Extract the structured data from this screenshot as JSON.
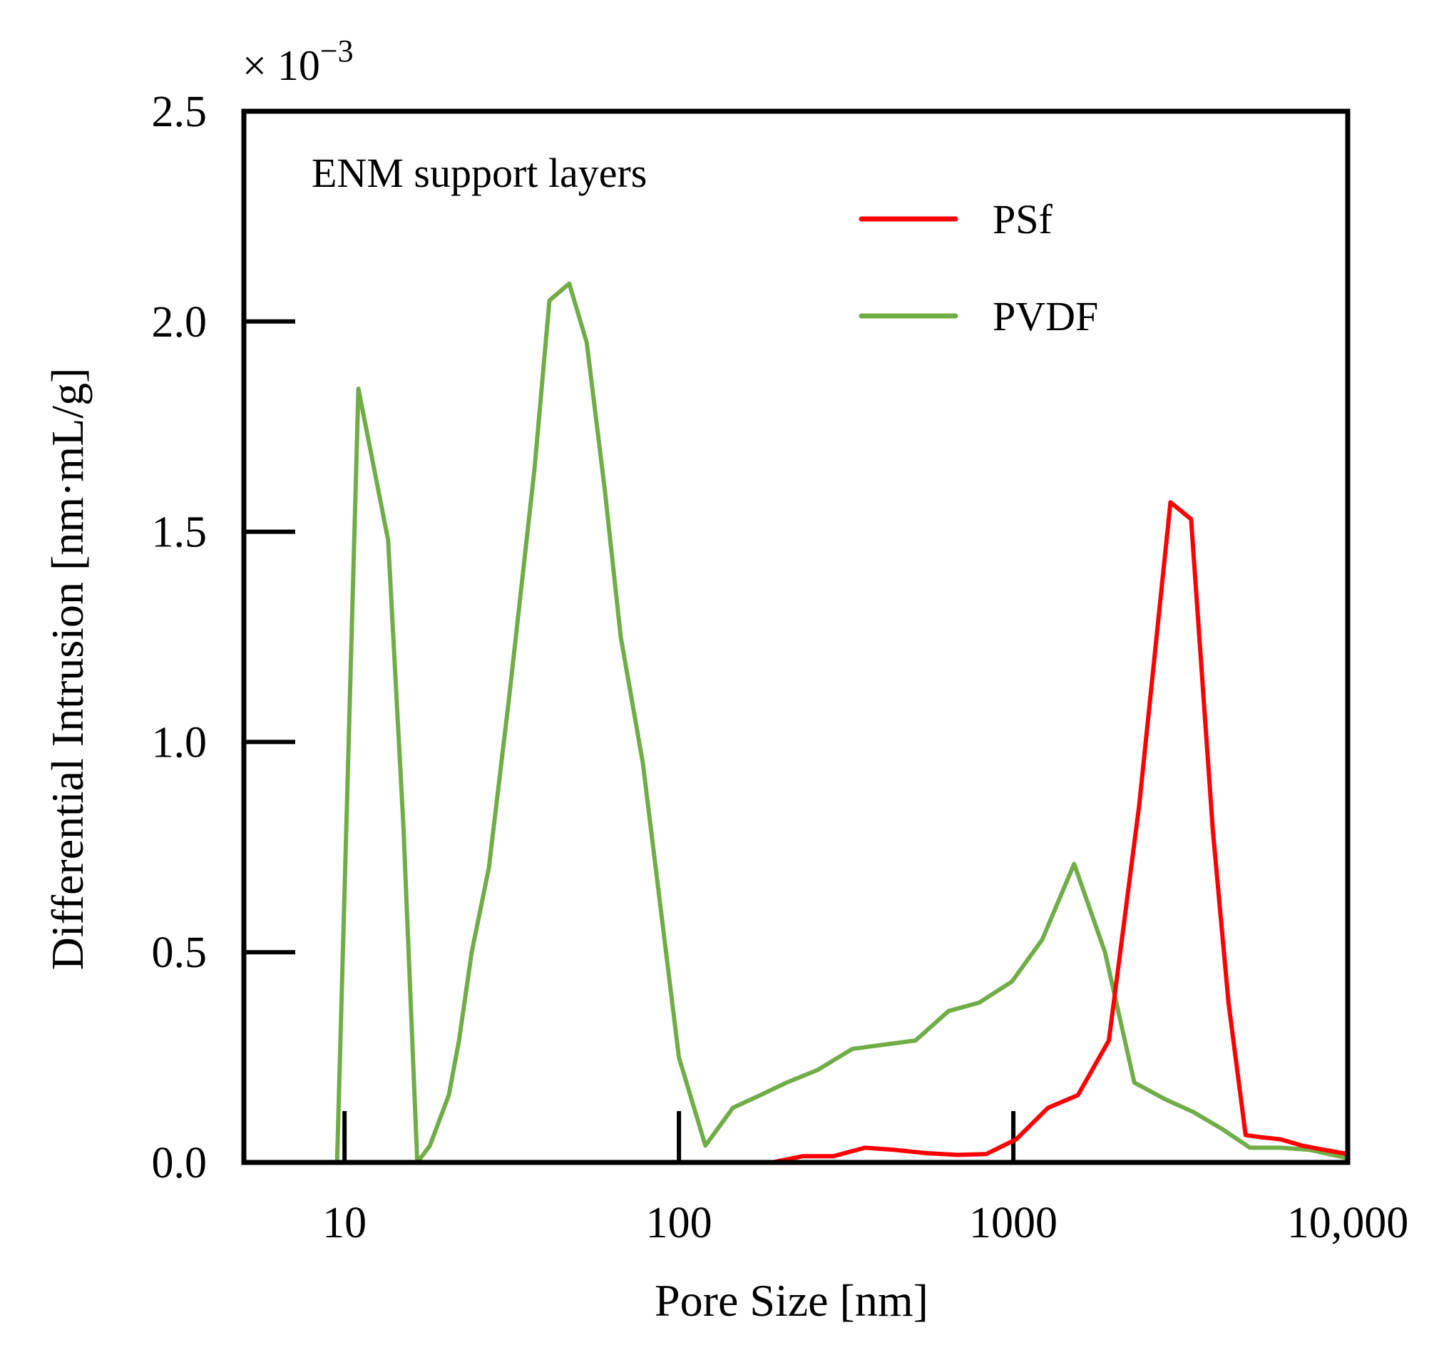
{
  "chart_data": {
    "type": "line",
    "title": "",
    "annotation": "ENM support layers",
    "xlabel": "Pore Size [nm]",
    "ylabel": "Differential Intrusion [nm·mL/g]",
    "y_multiplier": "× 10",
    "y_multiplier_exp": "−3",
    "xscale": "log",
    "xlim": [
      5,
      10000
    ],
    "ylim": [
      0,
      2.5
    ],
    "x_ticks": [
      {
        "value": 10,
        "label": "10"
      },
      {
        "value": 100,
        "label": "100"
      },
      {
        "value": 1000,
        "label": "1000"
      },
      {
        "value": 10000,
        "label": "10,000"
      }
    ],
    "y_ticks": [
      {
        "value": 0.0,
        "label": "0.0"
      },
      {
        "value": 0.5,
        "label": "0.5"
      },
      {
        "value": 1.0,
        "label": "1.0"
      },
      {
        "value": 1.5,
        "label": "1.5"
      },
      {
        "value": 2.0,
        "label": "2.0"
      },
      {
        "value": 2.5,
        "label": "2.5"
      }
    ],
    "legend_position": "top-right",
    "series": [
      {
        "name": "PSf",
        "color": "#ff0000",
        "x": [
          5,
          190,
          235,
          290,
          360,
          440,
          550,
          680,
          830,
          1020,
          1270,
          1560,
          1930,
          2380,
          2950,
          3400,
          3950,
          4400,
          4950,
          5500,
          6300,
          7300,
          8500,
          10000
        ],
        "y": [
          0,
          0,
          0.015,
          0.015,
          0.035,
          0.03,
          0.022,
          0.018,
          0.02,
          0.055,
          0.13,
          0.16,
          0.29,
          0.85,
          1.57,
          1.53,
          0.79,
          0.38,
          0.065,
          0.06,
          0.055,
          0.04,
          0.03,
          0.02
        ]
      },
      {
        "name": "PVDF",
        "color": "#70ad47",
        "x": [
          5,
          9.5,
          11,
          13.5,
          15,
          16.5,
          18,
          19,
          20.5,
          22,
          24,
          27,
          31,
          37,
          41,
          47,
          53,
          60,
          67,
          78,
          100,
          120,
          145,
          175,
          210,
          260,
          330,
          410,
          510,
          640,
          790,
          990,
          1220,
          1520,
          1880,
          2300,
          2850,
          3450,
          4200,
          5100,
          6300,
          7700,
          10000
        ],
        "y": [
          0,
          0,
          1.84,
          1.48,
          0.8,
          0,
          0.04,
          0.09,
          0.16,
          0.29,
          0.5,
          0.7,
          1.1,
          1.65,
          2.05,
          2.09,
          1.95,
          1.6,
          1.25,
          0.95,
          0.25,
          0.04,
          0.13,
          0.16,
          0.19,
          0.22,
          0.27,
          0.28,
          0.29,
          0.36,
          0.38,
          0.43,
          0.53,
          0.71,
          0.5,
          0.19,
          0.15,
          0.12,
          0.08,
          0.035,
          0.035,
          0.03,
          0.01
        ]
      }
    ]
  }
}
